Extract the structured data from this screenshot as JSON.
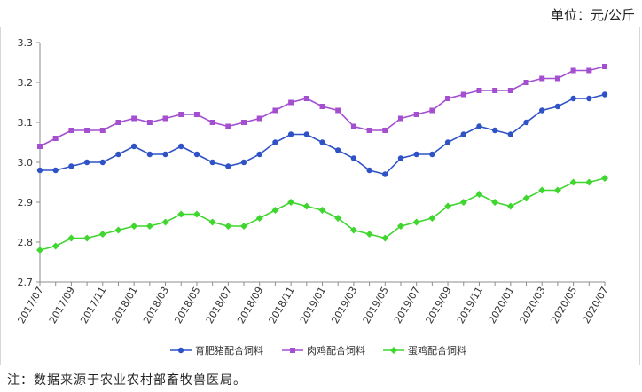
{
  "unit_label": "单位：元/公斤",
  "note": "注：数据来源于农业农村部畜牧兽医局。",
  "chart_data": {
    "type": "line",
    "title": "",
    "xlabel": "",
    "ylabel": "",
    "ylim": [
      2.7,
      3.3
    ],
    "yticks": [
      "3.3",
      "3.2",
      "3.1",
      "3.0",
      "2.9",
      "2.8",
      "2.7"
    ],
    "grid": false,
    "legend_position": "bottom",
    "x": [
      "2017/07",
      "2017/08",
      "2017/09",
      "2017/10",
      "2017/11",
      "2017/12",
      "2018/01",
      "2018/02",
      "2018/03",
      "2018/04",
      "2018/05",
      "2018/06",
      "2018/07",
      "2018/08",
      "2018/09",
      "2018/10",
      "2018/11",
      "2018/12",
      "2019/01",
      "2019/02",
      "2019/03",
      "2019/04",
      "2019/05",
      "2019/06",
      "2019/07",
      "2019/08",
      "2019/09",
      "2019/10",
      "2019/11",
      "2019/12",
      "2020/01",
      "2020/02",
      "2020/03",
      "2020/04",
      "2020/05",
      "2020/06",
      "2020/07"
    ],
    "xticks": [
      "2017/07",
      "2017/09",
      "2017/11",
      "2018/01",
      "2018/03",
      "2018/05",
      "2018/07",
      "2018/09",
      "2018/11",
      "2019/01",
      "2019/03",
      "2019/05",
      "2019/07",
      "2019/09",
      "2019/11",
      "2020/01",
      "2020/03",
      "2020/05",
      "2020/07"
    ],
    "series": [
      {
        "name": "育肥猪配合饲料",
        "color": "#2f52c6",
        "marker": "circle",
        "values": [
          2.98,
          2.98,
          2.99,
          3.0,
          3.0,
          3.02,
          3.04,
          3.02,
          3.02,
          3.04,
          3.02,
          3.0,
          2.99,
          3.0,
          3.02,
          3.05,
          3.07,
          3.07,
          3.05,
          3.03,
          3.01,
          2.98,
          2.97,
          3.01,
          3.02,
          3.02,
          3.05,
          3.07,
          3.09,
          3.08,
          3.07,
          3.1,
          3.13,
          3.14,
          3.16,
          3.16,
          3.17
        ]
      },
      {
        "name": "肉鸡配合饲料",
        "color": "#a44fd0",
        "marker": "square",
        "values": [
          3.04,
          3.06,
          3.08,
          3.08,
          3.08,
          3.1,
          3.11,
          3.1,
          3.11,
          3.12,
          3.12,
          3.1,
          3.09,
          3.1,
          3.11,
          3.13,
          3.15,
          3.16,
          3.14,
          3.13,
          3.09,
          3.08,
          3.08,
          3.11,
          3.12,
          3.13,
          3.16,
          3.17,
          3.18,
          3.18,
          3.18,
          3.2,
          3.21,
          3.21,
          3.23,
          3.23,
          3.24
        ]
      },
      {
        "name": "蛋鸡配合饲料",
        "color": "#3fd62f",
        "marker": "diamond",
        "values": [
          2.78,
          2.79,
          2.81,
          2.81,
          2.82,
          2.83,
          2.84,
          2.84,
          2.85,
          2.87,
          2.87,
          2.85,
          2.84,
          2.84,
          2.86,
          2.88,
          2.9,
          2.89,
          2.88,
          2.86,
          2.83,
          2.82,
          2.81,
          2.84,
          2.85,
          2.86,
          2.89,
          2.9,
          2.92,
          2.9,
          2.89,
          2.91,
          2.93,
          2.93,
          2.95,
          2.95,
          2.96
        ]
      }
    ]
  }
}
